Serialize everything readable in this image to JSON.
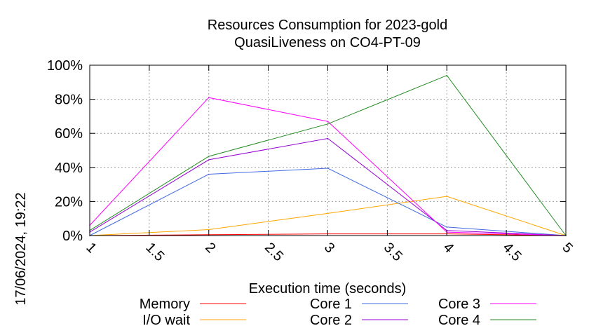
{
  "chart_data": {
    "type": "line",
    "title_lines": [
      "Resources Consumption for 2023-gold",
      "QuasiLiveness on CO4-PT-09"
    ],
    "xlabel": "Execution time (seconds)",
    "ylabel": "",
    "side_label": "17/06/2024, 19:22",
    "xlim": [
      1,
      5
    ],
    "ylim": [
      0,
      100
    ],
    "x_ticks": [
      1,
      1.5,
      2,
      2.5,
      3,
      3.5,
      4,
      4.5,
      5
    ],
    "x_tick_labels": [
      "1",
      "1.5",
      "2",
      "2.5",
      "3",
      "3.5",
      "4",
      "4.5",
      "5"
    ],
    "y_ticks": [
      0,
      20,
      40,
      60,
      80,
      100
    ],
    "y_tick_labels": [
      "0%",
      "20%",
      "40%",
      "60%",
      "80%",
      "100%"
    ],
    "grid": true,
    "legend_position": "bottom",
    "x": [
      1,
      2,
      3,
      4,
      5
    ],
    "series": [
      {
        "name": "Memory",
        "color": "#ff0000",
        "values": [
          0,
          0.5,
          1,
          1,
          0
        ]
      },
      {
        "name": "I/O wait",
        "color": "#ffa500",
        "values": [
          0,
          3.5,
          13,
          23,
          0
        ]
      },
      {
        "name": "Core 1",
        "color": "#4169e1",
        "values": [
          0,
          36,
          39.5,
          5,
          0
        ]
      },
      {
        "name": "Core 2",
        "color": "#9400d3",
        "values": [
          2,
          44.5,
          57,
          3,
          0
        ]
      },
      {
        "name": "Core 3",
        "color": "#ff00ff",
        "values": [
          6,
          81,
          67,
          2,
          0
        ]
      },
      {
        "name": "Core 4",
        "color": "#228b22",
        "values": [
          3,
          46.5,
          65.5,
          94,
          0
        ]
      }
    ]
  }
}
